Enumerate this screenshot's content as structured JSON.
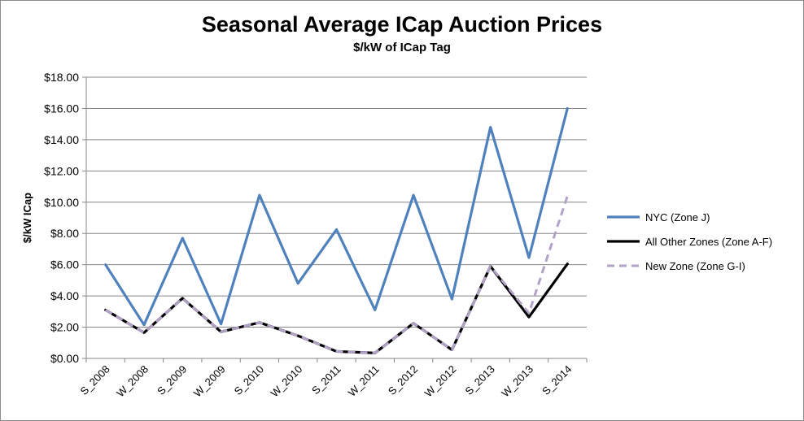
{
  "chart_data": {
    "type": "line",
    "title": "Seasonal Average ICap Auction Prices",
    "subtitle": "$/kW of ICap Tag",
    "xlabel": "",
    "ylabel": "$/kW ICap",
    "ylim": [
      0,
      18
    ],
    "y_ticks": [
      "$0.00",
      "$2.00",
      "$4.00",
      "$6.00",
      "$8.00",
      "$10.00",
      "$12.00",
      "$14.00",
      "$16.00",
      "$18.00"
    ],
    "grid": true,
    "legend_position": "right",
    "categories": [
      "S_2008",
      "W_2008",
      "S_2009",
      "W_2009",
      "S_2010",
      "W_2010",
      "S_2011",
      "W_2011",
      "S_2012",
      "W_2012",
      "S_2013",
      "W_2013",
      "S_2014"
    ],
    "series": [
      {
        "name": "NYC (Zone J)",
        "color": "#4f81bd",
        "style": "solid",
        "values": [
          6.0,
          2.15,
          7.7,
          2.2,
          10.45,
          4.8,
          8.25,
          3.1,
          10.45,
          3.8,
          14.8,
          6.45,
          16.0
        ]
      },
      {
        "name": "All Other Zones (Zone A-F)",
        "color": "#000000",
        "style": "solid",
        "values": [
          3.1,
          1.65,
          3.85,
          1.7,
          2.3,
          1.45,
          0.45,
          0.35,
          2.25,
          0.55,
          5.9,
          2.65,
          6.05
        ]
      },
      {
        "name": "New Zone (Zone G-I)",
        "color": "#b3a2c7",
        "style": "dashed",
        "values": [
          3.1,
          1.65,
          3.85,
          1.7,
          2.3,
          1.45,
          0.45,
          0.35,
          2.25,
          0.55,
          5.9,
          2.9,
          10.4
        ]
      }
    ]
  }
}
